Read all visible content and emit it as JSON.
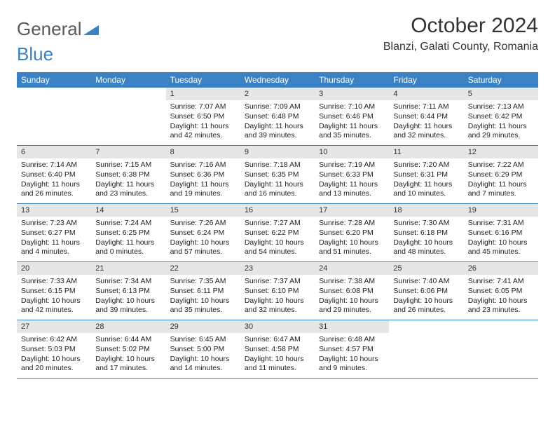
{
  "brand": {
    "word1": "General",
    "word2": "Blue"
  },
  "title": "October 2024",
  "location": "Blanzi, Galati County, Romania",
  "colors": {
    "header_bg": "#3b82c4",
    "daynum_bg": "#e6e6e6",
    "text": "#333333",
    "page_bg": "#ffffff"
  },
  "dow": [
    "Sunday",
    "Monday",
    "Tuesday",
    "Wednesday",
    "Thursday",
    "Friday",
    "Saturday"
  ],
  "weeks": [
    [
      {
        "n": "",
        "sr": "",
        "ss": "",
        "dl": ""
      },
      {
        "n": "",
        "sr": "",
        "ss": "",
        "dl": ""
      },
      {
        "n": "1",
        "sr": "Sunrise: 7:07 AM",
        "ss": "Sunset: 6:50 PM",
        "dl": "Daylight: 11 hours and 42 minutes."
      },
      {
        "n": "2",
        "sr": "Sunrise: 7:09 AM",
        "ss": "Sunset: 6:48 PM",
        "dl": "Daylight: 11 hours and 39 minutes."
      },
      {
        "n": "3",
        "sr": "Sunrise: 7:10 AM",
        "ss": "Sunset: 6:46 PM",
        "dl": "Daylight: 11 hours and 35 minutes."
      },
      {
        "n": "4",
        "sr": "Sunrise: 7:11 AM",
        "ss": "Sunset: 6:44 PM",
        "dl": "Daylight: 11 hours and 32 minutes."
      },
      {
        "n": "5",
        "sr": "Sunrise: 7:13 AM",
        "ss": "Sunset: 6:42 PM",
        "dl": "Daylight: 11 hours and 29 minutes."
      }
    ],
    [
      {
        "n": "6",
        "sr": "Sunrise: 7:14 AM",
        "ss": "Sunset: 6:40 PM",
        "dl": "Daylight: 11 hours and 26 minutes."
      },
      {
        "n": "7",
        "sr": "Sunrise: 7:15 AM",
        "ss": "Sunset: 6:38 PM",
        "dl": "Daylight: 11 hours and 23 minutes."
      },
      {
        "n": "8",
        "sr": "Sunrise: 7:16 AM",
        "ss": "Sunset: 6:36 PM",
        "dl": "Daylight: 11 hours and 19 minutes."
      },
      {
        "n": "9",
        "sr": "Sunrise: 7:18 AM",
        "ss": "Sunset: 6:35 PM",
        "dl": "Daylight: 11 hours and 16 minutes."
      },
      {
        "n": "10",
        "sr": "Sunrise: 7:19 AM",
        "ss": "Sunset: 6:33 PM",
        "dl": "Daylight: 11 hours and 13 minutes."
      },
      {
        "n": "11",
        "sr": "Sunrise: 7:20 AM",
        "ss": "Sunset: 6:31 PM",
        "dl": "Daylight: 11 hours and 10 minutes."
      },
      {
        "n": "12",
        "sr": "Sunrise: 7:22 AM",
        "ss": "Sunset: 6:29 PM",
        "dl": "Daylight: 11 hours and 7 minutes."
      }
    ],
    [
      {
        "n": "13",
        "sr": "Sunrise: 7:23 AM",
        "ss": "Sunset: 6:27 PM",
        "dl": "Daylight: 11 hours and 4 minutes."
      },
      {
        "n": "14",
        "sr": "Sunrise: 7:24 AM",
        "ss": "Sunset: 6:25 PM",
        "dl": "Daylight: 11 hours and 0 minutes."
      },
      {
        "n": "15",
        "sr": "Sunrise: 7:26 AM",
        "ss": "Sunset: 6:24 PM",
        "dl": "Daylight: 10 hours and 57 minutes."
      },
      {
        "n": "16",
        "sr": "Sunrise: 7:27 AM",
        "ss": "Sunset: 6:22 PM",
        "dl": "Daylight: 10 hours and 54 minutes."
      },
      {
        "n": "17",
        "sr": "Sunrise: 7:28 AM",
        "ss": "Sunset: 6:20 PM",
        "dl": "Daylight: 10 hours and 51 minutes."
      },
      {
        "n": "18",
        "sr": "Sunrise: 7:30 AM",
        "ss": "Sunset: 6:18 PM",
        "dl": "Daylight: 10 hours and 48 minutes."
      },
      {
        "n": "19",
        "sr": "Sunrise: 7:31 AM",
        "ss": "Sunset: 6:16 PM",
        "dl": "Daylight: 10 hours and 45 minutes."
      }
    ],
    [
      {
        "n": "20",
        "sr": "Sunrise: 7:33 AM",
        "ss": "Sunset: 6:15 PM",
        "dl": "Daylight: 10 hours and 42 minutes."
      },
      {
        "n": "21",
        "sr": "Sunrise: 7:34 AM",
        "ss": "Sunset: 6:13 PM",
        "dl": "Daylight: 10 hours and 39 minutes."
      },
      {
        "n": "22",
        "sr": "Sunrise: 7:35 AM",
        "ss": "Sunset: 6:11 PM",
        "dl": "Daylight: 10 hours and 35 minutes."
      },
      {
        "n": "23",
        "sr": "Sunrise: 7:37 AM",
        "ss": "Sunset: 6:10 PM",
        "dl": "Daylight: 10 hours and 32 minutes."
      },
      {
        "n": "24",
        "sr": "Sunrise: 7:38 AM",
        "ss": "Sunset: 6:08 PM",
        "dl": "Daylight: 10 hours and 29 minutes."
      },
      {
        "n": "25",
        "sr": "Sunrise: 7:40 AM",
        "ss": "Sunset: 6:06 PM",
        "dl": "Daylight: 10 hours and 26 minutes."
      },
      {
        "n": "26",
        "sr": "Sunrise: 7:41 AM",
        "ss": "Sunset: 6:05 PM",
        "dl": "Daylight: 10 hours and 23 minutes."
      }
    ],
    [
      {
        "n": "27",
        "sr": "Sunrise: 6:42 AM",
        "ss": "Sunset: 5:03 PM",
        "dl": "Daylight: 10 hours and 20 minutes."
      },
      {
        "n": "28",
        "sr": "Sunrise: 6:44 AM",
        "ss": "Sunset: 5:02 PM",
        "dl": "Daylight: 10 hours and 17 minutes."
      },
      {
        "n": "29",
        "sr": "Sunrise: 6:45 AM",
        "ss": "Sunset: 5:00 PM",
        "dl": "Daylight: 10 hours and 14 minutes."
      },
      {
        "n": "30",
        "sr": "Sunrise: 6:47 AM",
        "ss": "Sunset: 4:58 PM",
        "dl": "Daylight: 10 hours and 11 minutes."
      },
      {
        "n": "31",
        "sr": "Sunrise: 6:48 AM",
        "ss": "Sunset: 4:57 PM",
        "dl": "Daylight: 10 hours and 9 minutes."
      },
      {
        "n": "",
        "sr": "",
        "ss": "",
        "dl": ""
      },
      {
        "n": "",
        "sr": "",
        "ss": "",
        "dl": ""
      }
    ]
  ]
}
